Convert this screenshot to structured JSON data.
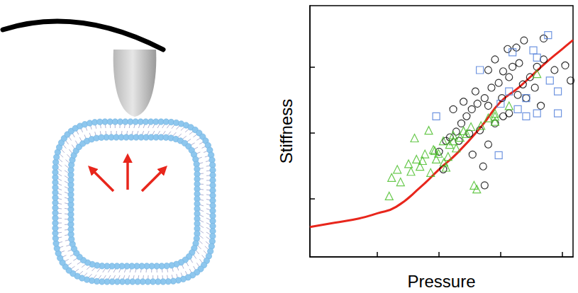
{
  "chart_data": {
    "type": "scatter",
    "x_label": "Pressure",
    "y_label": "Stiffness",
    "log": true,
    "grid": false,
    "tick_labels": false,
    "xlim": [
      0.008,
      150
    ],
    "xticks": [
      0.1,
      1,
      10,
      100
    ],
    "ylim": [
      0.13,
      870
    ],
    "yticks": [
      1,
      10,
      100
    ],
    "series": [
      {
        "type": "scatter",
        "color": "#000000",
        "marker": "circle",
        "x": [
          1.0,
          1.3,
          1.9,
          2.3,
          2.8,
          3.4,
          4.2,
          5.5,
          7.1,
          9.3,
          11,
          15.6,
          20,
          23,
          30,
          39,
          50,
          75,
          112,
          137,
          6.3,
          8.1,
          13,
          18,
          24,
          50,
          5.5,
          5.2,
          1.7,
          2.5,
          3.9,
          6.3,
          10.5,
          13.7,
          19,
          26,
          36,
          3.1,
          4.6,
          8.1,
          11,
          2.1,
          1.5,
          1.17,
          3.5,
          6.3,
          13.7,
          45
        ],
        "values": [
          5.2,
          7.6,
          10.5,
          14,
          18,
          23,
          28,
          34,
          49,
          58,
          87,
          102,
          116,
          55,
          71,
          102,
          132,
          91,
          107,
          63,
          91,
          132,
          190,
          200,
          257,
          275,
          1.6,
          3.1,
          23,
          30,
          43,
          26,
          34,
          20,
          38,
          34,
          49,
          9.8,
          11,
          14,
          18,
          7.6,
          8.6,
          2.8,
          4.7,
          6.7,
          71,
          26
        ]
      },
      {
        "type": "scatter",
        "color": "#4b7bd8",
        "marker": "square",
        "x": [
          0.9,
          4.6,
          10,
          13.7,
          26,
          39,
          63,
          85,
          59,
          9.3,
          19,
          26,
          39,
          85,
          15.6,
          34
        ],
        "values": [
          18,
          91,
          28,
          43,
          18,
          20,
          63,
          20,
          310,
          4.6,
          23,
          34,
          141,
          43,
          170,
          182
        ]
      },
      {
        "type": "scatter",
        "color": "#44bb22",
        "marker": "triangle",
        "x": [
          0.155,
          0.237,
          0.35,
          0.49,
          0.59,
          0.81,
          1.17,
          1.7,
          0.21,
          0.32,
          0.54,
          0.85,
          1.48,
          2.2,
          3.3,
          8.1,
          0.17,
          0.73,
          1.2,
          3.7,
          4.1,
          0.43,
          0.98,
          1.7,
          2.5,
          6.3,
          13.7,
          0.4,
          0.68,
          8.1,
          4.8,
          2.8,
          1.9,
          1.4,
          0.9,
          1.3,
          8.1,
          39
        ],
        "values": [
          1.1,
          1.8,
          2.6,
          3.1,
          4.8,
          5.6,
          7.6,
          7.6,
          2.8,
          3.4,
          3.8,
          5.4,
          6.7,
          8.6,
          12.5,
          18,
          2.1,
          2.5,
          3.6,
          1.6,
          1.4,
          4.0,
          4.9,
          9.3,
          10.8,
          17,
          26,
          8.4,
          11,
          15,
          13,
          9.8,
          5.9,
          4.4,
          4.0,
          3.0,
          20,
          80
        ]
      },
      {
        "type": "line",
        "color": "#e8261c",
        "line_style": "solid",
        "x": [
          0.008,
          0.02,
          0.05,
          0.1,
          0.2,
          0.5,
          1,
          2,
          5,
          10,
          20,
          50,
          100,
          150
        ],
        "values": [
          0.37,
          0.43,
          0.5,
          0.6,
          0.75,
          1.5,
          2.8,
          5,
          13,
          30,
          50,
          110,
          190,
          260
        ]
      }
    ]
  }
}
